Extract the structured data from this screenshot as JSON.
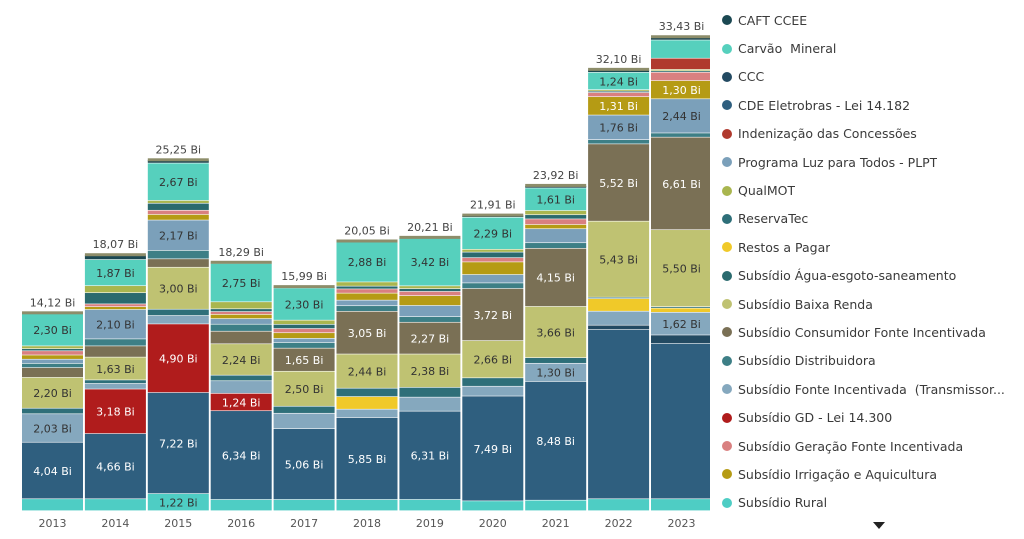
{
  "chart_data": {
    "type": "bar",
    "stacked": true,
    "categories": [
      "2013",
      "2014",
      "2015",
      "2016",
      "2017",
      "2018",
      "2019",
      "2020",
      "2021",
      "2022",
      "2023"
    ],
    "totals": [
      14.12,
      18.07,
      25.25,
      18.29,
      15.99,
      20.05,
      20.21,
      21.91,
      23.92,
      32.1,
      33.43
    ],
    "total_labels": [
      "14,12 Bi",
      "18,07 Bi",
      "25,25 Bi",
      "18,29 Bi",
      "15,99 Bi",
      "20,05 Bi",
      "20,21 Bi",
      "21,91 Bi",
      "23,92 Bi",
      "32,10 Bi",
      "33,43 Bi"
    ],
    "series": [
      {
        "name": "Subsídio Rural",
        "color": "#4ecdc4",
        "values": [
          0.85,
          0.85,
          1.22,
          0.8,
          0.8,
          0.8,
          0.8,
          0.7,
          0.75,
          0.85,
          0.85
        ],
        "labels": [
          "",
          "",
          "1,22 Bi",
          "",
          "",
          "",
          "",
          "",
          "",
          "",
          ""
        ]
      },
      {
        "name": "CDE Eletrobras - Lei 14.182",
        "color": "#2f5f7f",
        "values": [
          4.04,
          4.66,
          7.22,
          6.34,
          5.06,
          5.85,
          6.31,
          7.49,
          8.48,
          12.1,
          11.1
        ],
        "labels": [
          "4,04 Bi",
          "4,66 Bi",
          "7,22 Bi",
          "6,34 Bi",
          "5,06 Bi",
          "5,85 Bi",
          "6,31 Bi",
          "7,49 Bi",
          "8,48 Bi",
          "",
          ""
        ]
      },
      {
        "name": "CCC",
        "color": "#234a62",
        "values": [
          0,
          0,
          0,
          0,
          0,
          0,
          0,
          0,
          0,
          0.3,
          0.6
        ],
        "labels": [
          "",
          "",
          "",
          "",
          "",
          "",
          "",
          "",
          "",
          "",
          ""
        ]
      },
      {
        "name": "Subsídio GD - Lei 14.300",
        "color": "#b01c1c",
        "values": [
          0,
          3.18,
          4.9,
          1.24,
          0,
          0,
          0,
          0,
          0,
          0,
          0
        ],
        "labels": [
          "",
          "3,18 Bi",
          "4,90 Bi",
          "1,24 Bi",
          "",
          "",
          "",
          "",
          "",
          "",
          ""
        ]
      },
      {
        "name": "Subsídio Fonte Incentivada (Transmissor...",
        "color": "#85a8be",
        "values": [
          2.03,
          0.4,
          0.6,
          0.9,
          1.1,
          0.6,
          1.0,
          0.7,
          1.3,
          1.0,
          1.62
        ],
        "labels": [
          "2,03 Bi",
          "",
          "",
          "",
          "",
          "",
          "",
          "",
          "1,30 Bi",
          "",
          "1,62 Bi"
        ]
      },
      {
        "name": "Restos a Pagar",
        "color": "#f0c929",
        "values": [
          0,
          0,
          0,
          0,
          0,
          0.9,
          0,
          0,
          0,
          0.9,
          0.3
        ],
        "labels": [
          "",
          "",
          "",
          "",
          "",
          "",
          "",
          "",
          "",
          "",
          ""
        ]
      },
      {
        "name": "ReservaTec",
        "color": "#2e6f79",
        "values": [
          0.4,
          0.25,
          0.45,
          0.4,
          0.5,
          0.6,
          0.7,
          0.6,
          0.4,
          0.1,
          0.1
        ],
        "labels": [
          "",
          "",
          "",
          "",
          "",
          "",
          "",
          "",
          "",
          "",
          ""
        ]
      },
      {
        "name": "Subsídio Baixa Renda",
        "color": "#bfc272",
        "values": [
          2.2,
          1.63,
          3.0,
          2.24,
          2.5,
          2.44,
          2.38,
          2.66,
          3.66,
          5.43,
          5.5
        ],
        "labels": [
          "2,20 Bi",
          "1,63 Bi",
          "3,00 Bi",
          "2,24 Bi",
          "2,50 Bi",
          "2,44 Bi",
          "2,38 Bi",
          "2,66 Bi",
          "3,66 Bi",
          "5,43 Bi",
          "5,50 Bi"
        ]
      },
      {
        "name": "Subsídio Consumidor Fonte Incentivada",
        "color": "#7a7055",
        "values": [
          0.7,
          0.8,
          0.6,
          0.9,
          1.65,
          3.05,
          2.27,
          3.72,
          4.15,
          5.52,
          6.61
        ],
        "labels": [
          "",
          "",
          "",
          "",
          "1,65 Bi",
          "3,05 Bi",
          "2,27 Bi",
          "3,72 Bi",
          "4,15 Bi",
          "5,52 Bi",
          "6,61 Bi"
        ]
      },
      {
        "name": "Subsídio Distribuidora",
        "color": "#3d7f86",
        "values": [
          0.3,
          0.5,
          0.6,
          0.5,
          0.4,
          0.4,
          0.4,
          0.4,
          0.4,
          0.3,
          0.3
        ],
        "labels": [
          "",
          "",
          "",
          "",
          "",
          "",
          "",
          "",
          "",
          "",
          ""
        ]
      },
      {
        "name": "Programa Luz para Todos - PLPT",
        "color": "#7ba0ba",
        "values": [
          0.3,
          2.1,
          2.17,
          0.4,
          0.3,
          0.4,
          0.8,
          0.6,
          1.0,
          1.76,
          2.44
        ],
        "labels": [
          "",
          "2,10 Bi",
          "2,17 Bi",
          "",
          "",
          "",
          "",
          "",
          "",
          "1,76 Bi",
          "2,44 Bi"
        ]
      },
      {
        "name": "Subsídio Irrigação e Aquicultura",
        "color": "#b59b14",
        "values": [
          0.3,
          0.2,
          0.4,
          0.3,
          0.4,
          0.5,
          0.7,
          0.9,
          0.3,
          1.31,
          1.3
        ],
        "labels": [
          "",
          "",
          "",
          "",
          "",
          "",
          "",
          "",
          "",
          "1,31 Bi",
          "1,30 Bi"
        ]
      },
      {
        "name": "Subsídio Geração Fonte Incentivada",
        "color": "#d98080",
        "values": [
          0.3,
          0.2,
          0.3,
          0.2,
          0.3,
          0.3,
          0.3,
          0.3,
          0.4,
          0.3,
          0.6
        ],
        "labels": [
          "",
          "",
          "",
          "",
          "",
          "",
          "",
          "",
          "",
          "",
          ""
        ]
      },
      {
        "name": "Subsídio Água-esgoto-saneamento",
        "color": "#2a6a6e",
        "values": [
          0.15,
          0.8,
          0.5,
          0.2,
          0.3,
          0.2,
          0.2,
          0.4,
          0.3,
          0.1,
          0.1
        ],
        "labels": [
          "",
          "",
          "",
          "",
          "",
          "",
          "",
          "",
          "",
          "",
          ""
        ]
      },
      {
        "name": "QualMOT",
        "color": "#a9b64f",
        "values": [
          0.2,
          0.5,
          0.2,
          0.5,
          0.3,
          0.3,
          0.2,
          0.2,
          0.3,
          0.1,
          0.1
        ],
        "labels": [
          "",
          "",
          "",
          "",
          "",
          "",
          "",
          "",
          "",
          "",
          ""
        ]
      },
      {
        "name": "Indenização das Concessões",
        "color": "#b03a2e",
        "values": [
          0,
          0,
          0,
          0,
          0,
          0,
          0,
          0,
          0,
          0,
          0.8
        ],
        "labels": [
          "",
          "",
          "",
          "",
          "",
          "",
          "",
          "",
          "",
          "",
          ""
        ]
      },
      {
        "name": "Carvão  Mineral",
        "color": "#56d0bd",
        "values": [
          2.3,
          1.87,
          2.67,
          2.75,
          2.3,
          2.88,
          3.42,
          2.29,
          1.61,
          1.24,
          1.3
        ],
        "labels": [
          "2,30 Bi",
          "1,87 Bi",
          "2,67 Bi",
          "2,75 Bi",
          "2,30 Bi",
          "2,88 Bi",
          "3,42 Bi",
          "2,29 Bi",
          "1,61 Bi",
          "1,24 Bi",
          ""
        ]
      },
      {
        "name": "CAFT CCEE",
        "color": "#1b4852",
        "values": [
          0.05,
          0.33,
          0.22,
          0.06,
          0.08,
          0.03,
          0.03,
          0.14,
          0.17,
          0.2,
          0.22
        ],
        "labels": [
          "",
          "",
          "",
          "",
          "",
          "",
          "",
          "",
          "",
          "",
          ""
        ]
      }
    ]
  },
  "legend": [
    {
      "name": "CAFT CCEE",
      "color": "#1b4852"
    },
    {
      "name": "Carvão  Mineral",
      "color": "#56d0bd"
    },
    {
      "name": "CCC",
      "color": "#234a62"
    },
    {
      "name": "CDE Eletrobras - Lei 14.182",
      "color": "#2f5f7f"
    },
    {
      "name": "Indenização das Concessões",
      "color": "#b03a2e"
    },
    {
      "name": "Programa Luz para Todos - PLPT",
      "color": "#7ba0ba"
    },
    {
      "name": "QualMOT",
      "color": "#a9b64f"
    },
    {
      "name": "ReservaTec",
      "color": "#2e6f79"
    },
    {
      "name": "Restos a Pagar",
      "color": "#f0c929"
    },
    {
      "name": "Subsídio Água-esgoto-saneamento",
      "color": "#2a6a6e"
    },
    {
      "name": "Subsídio Baixa Renda",
      "color": "#bfc272"
    },
    {
      "name": "Subsídio Consumidor Fonte Incentivada",
      "color": "#7a7055"
    },
    {
      "name": "Subsídio Distribuidora",
      "color": "#3d7f86"
    },
    {
      "name": "Subsídio Fonte Incentivada  (Transmissor...",
      "color": "#85a8be"
    },
    {
      "name": "Subsídio GD - Lei 14.300",
      "color": "#b01c1c"
    },
    {
      "name": "Subsídio Geração Fonte Incentivada",
      "color": "#d98080"
    },
    {
      "name": "Subsídio Irrigação e Aquicultura",
      "color": "#b59b14"
    },
    {
      "name": "Subsídio Rural",
      "color": "#4ecdc4"
    }
  ]
}
